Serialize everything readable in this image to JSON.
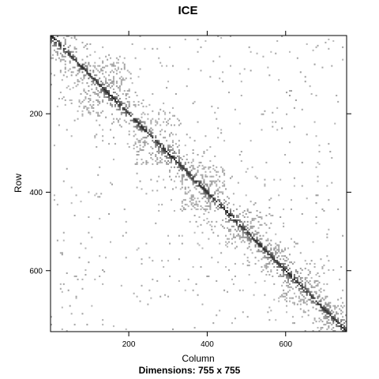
{
  "chart_data": {
    "type": "heatmap",
    "title": "ICE",
    "subtitle": "Dimensions: 755 x 755",
    "xlabel": "Column",
    "ylabel": "Row",
    "matrix_dimensions": [
      755,
      755
    ],
    "xlim": [
      0.5,
      755.5
    ],
    "ylim": [
      755.5,
      0.5
    ],
    "x_ticks": [
      200,
      400,
      600
    ],
    "y_ticks": [
      200,
      400,
      600
    ],
    "x_tick_labels": [
      "200",
      "400",
      "600"
    ],
    "y_tick_labels": [
      "200",
      "400",
      "600"
    ],
    "colorscale": "grey intensity (white = 0, black = high)",
    "structure": {
      "diagonal": "strong dark band along the main diagonal",
      "blocks": [
        {
          "start": 1,
          "end": 70
        },
        {
          "start": 70,
          "end": 210
        },
        {
          "start": 210,
          "end": 330
        },
        {
          "start": 330,
          "end": 445
        },
        {
          "start": 445,
          "end": 540
        },
        {
          "start": 540,
          "end": 600
        },
        {
          "start": 600,
          "end": 690
        },
        {
          "start": 690,
          "end": 755
        }
      ],
      "sparse_rows_columns": [
        205,
        210,
        250,
        265
      ]
    }
  }
}
